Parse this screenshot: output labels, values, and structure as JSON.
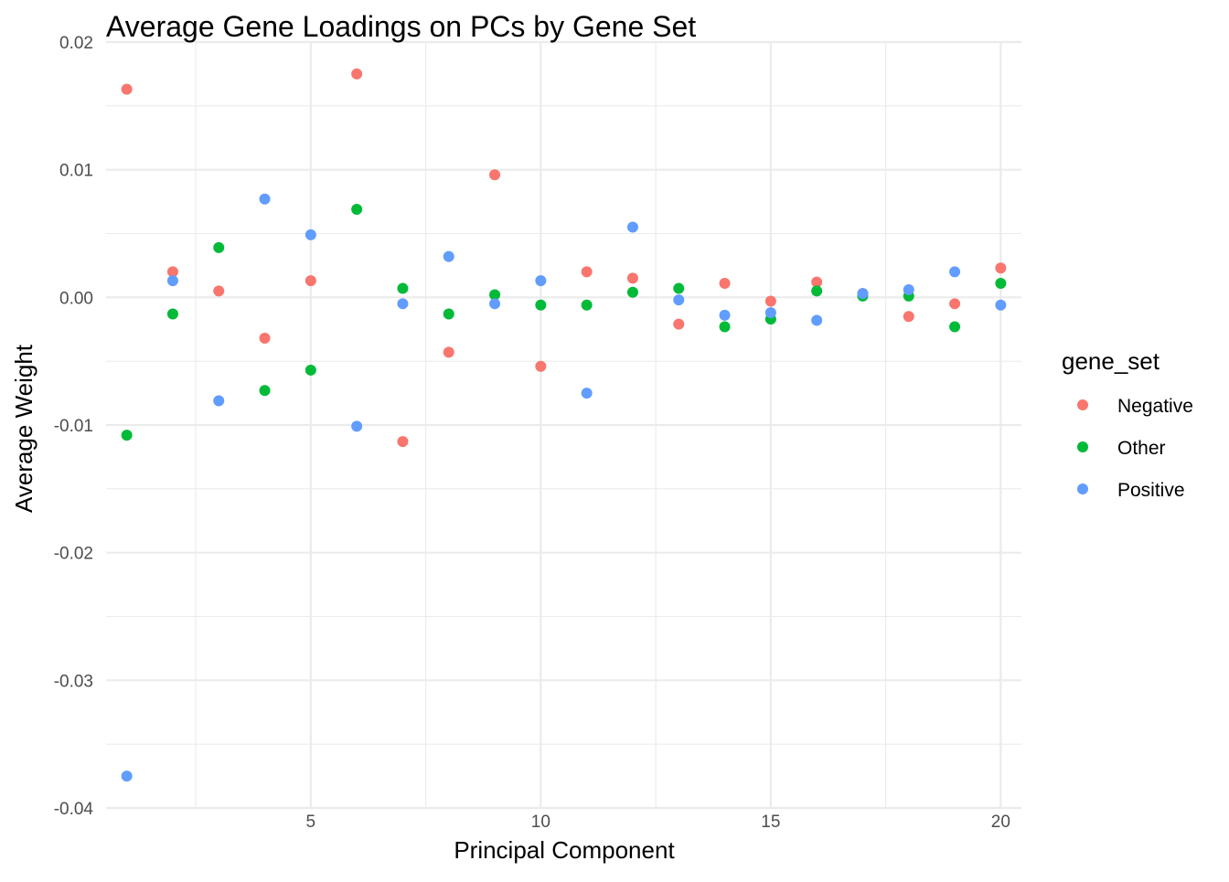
{
  "chart_data": {
    "type": "scatter",
    "title": "Average Gene Loadings on PCs by Gene Set",
    "xlabel": "Principal Component",
    "ylabel": "Average Weight",
    "xlim": [
      0.55,
      20.45
    ],
    "ylim": [
      -0.04,
      0.02
    ],
    "x_ticks": [
      5,
      10,
      15,
      20
    ],
    "x_tick_labels": [
      "5",
      "10",
      "15",
      "20"
    ],
    "y_ticks": [
      -0.04,
      -0.03,
      -0.02,
      -0.01,
      0.0,
      0.01,
      0.02
    ],
    "y_tick_labels": [
      "-0.04",
      "-0.03",
      "-0.02",
      "-0.01",
      "0.00",
      "0.01",
      "0.02"
    ],
    "grid": true,
    "legend": {
      "title": "gene_set",
      "position": "right"
    },
    "series": [
      {
        "name": "Negative",
        "color": "#F8766D",
        "points": [
          [
            1,
            0.0163
          ],
          [
            2,
            0.002
          ],
          [
            3,
            0.0005
          ],
          [
            4,
            -0.0032
          ],
          [
            5,
            0.0013
          ],
          [
            6,
            0.0175
          ],
          [
            7,
            -0.0113
          ],
          [
            8,
            -0.0043
          ],
          [
            9,
            0.0096
          ],
          [
            10,
            -0.0054
          ],
          [
            11,
            0.002
          ],
          [
            12,
            0.0015
          ],
          [
            13,
            -0.0021
          ],
          [
            14,
            0.0011
          ],
          [
            15,
            -0.0003
          ],
          [
            16,
            0.0012
          ],
          [
            17,
            0.0003
          ],
          [
            18,
            -0.0015
          ],
          [
            19,
            -0.0005
          ],
          [
            20,
            0.0023
          ]
        ]
      },
      {
        "name": "Other",
        "color": "#00BA38",
        "points": [
          [
            1,
            -0.0108
          ],
          [
            2,
            -0.0013
          ],
          [
            3,
            0.0039
          ],
          [
            4,
            -0.0073
          ],
          [
            5,
            -0.0057
          ],
          [
            6,
            0.0069
          ],
          [
            7,
            0.0007
          ],
          [
            8,
            -0.0013
          ],
          [
            9,
            0.0002
          ],
          [
            10,
            -0.0006
          ],
          [
            11,
            -0.0006
          ],
          [
            12,
            0.0004
          ],
          [
            13,
            0.0007
          ],
          [
            14,
            -0.0023
          ],
          [
            15,
            -0.0017
          ],
          [
            16,
            0.0005
          ],
          [
            17,
            0.0001
          ],
          [
            18,
            0.0001
          ],
          [
            19,
            -0.0023
          ],
          [
            20,
            0.0011
          ]
        ]
      },
      {
        "name": "Positive",
        "color": "#619CFF",
        "points": [
          [
            1,
            -0.0375
          ],
          [
            2,
            0.0013
          ],
          [
            3,
            -0.0081
          ],
          [
            4,
            0.0077
          ],
          [
            5,
            0.0049
          ],
          [
            6,
            -0.0101
          ],
          [
            7,
            -0.0005
          ],
          [
            8,
            0.0032
          ],
          [
            9,
            -0.0005
          ],
          [
            10,
            0.0013
          ],
          [
            11,
            -0.0075
          ],
          [
            12,
            0.0055
          ],
          [
            13,
            -0.0002
          ],
          [
            14,
            -0.0014
          ],
          [
            15,
            -0.0012
          ],
          [
            16,
            -0.0018
          ],
          [
            17,
            0.0003
          ],
          [
            18,
            0.0006
          ],
          [
            19,
            0.002
          ],
          [
            20,
            -0.0006
          ]
        ]
      }
    ]
  }
}
